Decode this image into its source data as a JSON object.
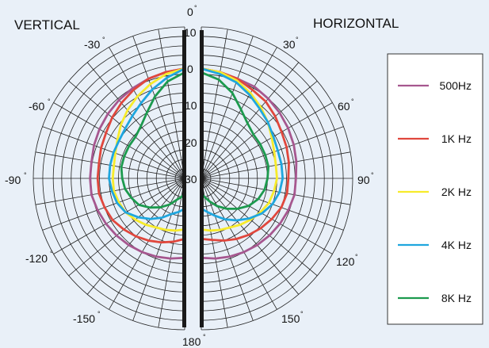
{
  "chart_data": {
    "type": "polar",
    "titles": {
      "left": "VERTICAL",
      "right": "HORIZONTAL"
    },
    "angle_labels": [
      "0",
      "-30",
      "30",
      "-60",
      "60",
      "-90",
      "90",
      "-120",
      "120",
      "-150",
      "150",
      "180"
    ],
    "radial_labels": [
      "10",
      "0",
      "10",
      "20",
      "30"
    ],
    "series": [
      {
        "name": "500Hz",
        "color": "#a6578f",
        "vertical": [
          [
            0,
            -1
          ],
          [
            10,
            -1.5
          ],
          [
            20,
            -2
          ],
          [
            30,
            -2.5
          ],
          [
            40,
            -3
          ],
          [
            50,
            -3.5
          ],
          [
            60,
            -4
          ],
          [
            70,
            -4.5
          ],
          [
            80,
            -5
          ],
          [
            90,
            -5
          ],
          [
            100,
            -5
          ],
          [
            110,
            -5.5
          ],
          [
            120,
            -6
          ],
          [
            130,
            -6.5
          ],
          [
            140,
            -7
          ],
          [
            150,
            -7.5
          ],
          [
            160,
            -8
          ],
          [
            170,
            -8.5
          ],
          [
            180,
            -9
          ]
        ],
        "horizontal": [
          [
            0,
            -1
          ],
          [
            10,
            -1.5
          ],
          [
            20,
            -2
          ],
          [
            30,
            -2
          ],
          [
            40,
            -2.5
          ],
          [
            50,
            -3
          ],
          [
            60,
            -3.5
          ],
          [
            70,
            -4
          ],
          [
            80,
            -4.5
          ],
          [
            90,
            -5
          ],
          [
            100,
            -5
          ],
          [
            110,
            -5.5
          ],
          [
            120,
            -6
          ],
          [
            130,
            -6.5
          ],
          [
            140,
            -7
          ],
          [
            150,
            -7.5
          ],
          [
            160,
            -8
          ],
          [
            170,
            -8.5
          ],
          [
            180,
            -9
          ]
        ]
      },
      {
        "name": "1K Hz",
        "color": "#e0473d",
        "vertical": [
          [
            0,
            -1
          ],
          [
            10,
            -1.5
          ],
          [
            20,
            -2
          ],
          [
            30,
            -3
          ],
          [
            40,
            -4
          ],
          [
            50,
            -5
          ],
          [
            60,
            -6
          ],
          [
            70,
            -6.5
          ],
          [
            80,
            -7
          ],
          [
            90,
            -7
          ],
          [
            100,
            -7
          ],
          [
            110,
            -7.5
          ],
          [
            120,
            -8
          ],
          [
            130,
            -9
          ],
          [
            140,
            -10
          ],
          [
            150,
            -11
          ],
          [
            160,
            -12
          ],
          [
            170,
            -13
          ],
          [
            180,
            -14
          ]
        ],
        "horizontal": [
          [
            0,
            -1
          ],
          [
            10,
            -1.5
          ],
          [
            20,
            -2
          ],
          [
            30,
            -3
          ],
          [
            40,
            -3.5
          ],
          [
            50,
            -4.5
          ],
          [
            60,
            -5.5
          ],
          [
            70,
            -6
          ],
          [
            80,
            -6.5
          ],
          [
            90,
            -7
          ],
          [
            100,
            -7
          ],
          [
            110,
            -7.5
          ],
          [
            120,
            -8.5
          ],
          [
            130,
            -9.5
          ],
          [
            140,
            -10.5
          ],
          [
            150,
            -11.5
          ],
          [
            160,
            -12.5
          ],
          [
            170,
            -13.5
          ],
          [
            180,
            -14
          ]
        ]
      },
      {
        "name": "2K Hz",
        "color": "#f7eb2b",
        "vertical": [
          [
            0,
            -1
          ],
          [
            10,
            -2
          ],
          [
            20,
            -3.5
          ],
          [
            30,
            -5
          ],
          [
            40,
            -6.5
          ],
          [
            50,
            -8
          ],
          [
            60,
            -9.5
          ],
          [
            70,
            -10.5
          ],
          [
            80,
            -11
          ],
          [
            90,
            -11
          ],
          [
            100,
            -11
          ],
          [
            110,
            -11.5
          ],
          [
            120,
            -12
          ],
          [
            130,
            -13
          ],
          [
            140,
            -14
          ],
          [
            150,
            -15
          ],
          [
            160,
            -15.5
          ],
          [
            170,
            -16
          ],
          [
            180,
            -16.5
          ]
        ],
        "horizontal": [
          [
            0,
            -1
          ],
          [
            10,
            -1.5
          ],
          [
            20,
            -2.5
          ],
          [
            30,
            -4
          ],
          [
            40,
            -5.5
          ],
          [
            50,
            -7
          ],
          [
            60,
            -8.5
          ],
          [
            70,
            -9.5
          ],
          [
            80,
            -10
          ],
          [
            90,
            -10
          ],
          [
            100,
            -10.5
          ],
          [
            110,
            -11
          ],
          [
            120,
            -12
          ],
          [
            130,
            -13
          ],
          [
            140,
            -14
          ],
          [
            150,
            -15
          ],
          [
            160,
            -15.5
          ],
          [
            170,
            -16
          ],
          [
            180,
            -16.5
          ]
        ]
      },
      {
        "name": "4K Hz",
        "color": "#1fa6de",
        "vertical": [
          [
            0,
            -1
          ],
          [
            10,
            -3
          ],
          [
            20,
            -5
          ],
          [
            30,
            -7
          ],
          [
            40,
            -8.5
          ],
          [
            50,
            -9.5
          ],
          [
            60,
            -10
          ],
          [
            70,
            -10
          ],
          [
            80,
            -10
          ],
          [
            90,
            -10
          ],
          [
            100,
            -10.5
          ],
          [
            110,
            -11
          ],
          [
            120,
            -12
          ],
          [
            130,
            -14
          ],
          [
            140,
            -16
          ],
          [
            150,
            -18
          ],
          [
            160,
            -20
          ],
          [
            170,
            -21
          ],
          [
            180,
            -22
          ]
        ],
        "horizontal": [
          [
            0,
            -1
          ],
          [
            10,
            -2
          ],
          [
            20,
            -3
          ],
          [
            30,
            -4.5
          ],
          [
            40,
            -6
          ],
          [
            50,
            -7
          ],
          [
            60,
            -8
          ],
          [
            70,
            -8.5
          ],
          [
            80,
            -8.5
          ],
          [
            90,
            -8.5
          ],
          [
            100,
            -9
          ],
          [
            110,
            -10
          ],
          [
            120,
            -11.5
          ],
          [
            130,
            -13.5
          ],
          [
            140,
            -15.5
          ],
          [
            150,
            -17.5
          ],
          [
            160,
            -19.5
          ],
          [
            170,
            -21
          ],
          [
            180,
            -22
          ]
        ]
      },
      {
        "name": "8K Hz",
        "color": "#1c9a4e",
        "vertical": [
          [
            0,
            -2
          ],
          [
            10,
            -4
          ],
          [
            20,
            -7
          ],
          [
            30,
            -10
          ],
          [
            40,
            -12
          ],
          [
            50,
            -13
          ],
          [
            60,
            -13
          ],
          [
            70,
            -13
          ],
          [
            80,
            -13
          ],
          [
            90,
            -13.5
          ],
          [
            100,
            -14
          ],
          [
            110,
            -15
          ],
          [
            120,
            -16
          ],
          [
            130,
            -18
          ],
          [
            140,
            -20
          ],
          [
            150,
            -22
          ],
          [
            160,
            -24
          ],
          [
            170,
            -25
          ],
          [
            180,
            -26
          ]
        ],
        "horizontal": [
          [
            0,
            -2
          ],
          [
            10,
            -3.5
          ],
          [
            20,
            -6
          ],
          [
            30,
            -9
          ],
          [
            40,
            -11
          ],
          [
            50,
            -12
          ],
          [
            60,
            -12
          ],
          [
            70,
            -12
          ],
          [
            80,
            -12
          ],
          [
            90,
            -12.5
          ],
          [
            100,
            -13
          ],
          [
            110,
            -14
          ],
          [
            120,
            -15.5
          ],
          [
            130,
            -17.5
          ],
          [
            140,
            -19.5
          ],
          [
            150,
            -21.5
          ],
          [
            160,
            -23.5
          ],
          [
            170,
            -25
          ],
          [
            180,
            -26
          ]
        ]
      }
    ]
  }
}
